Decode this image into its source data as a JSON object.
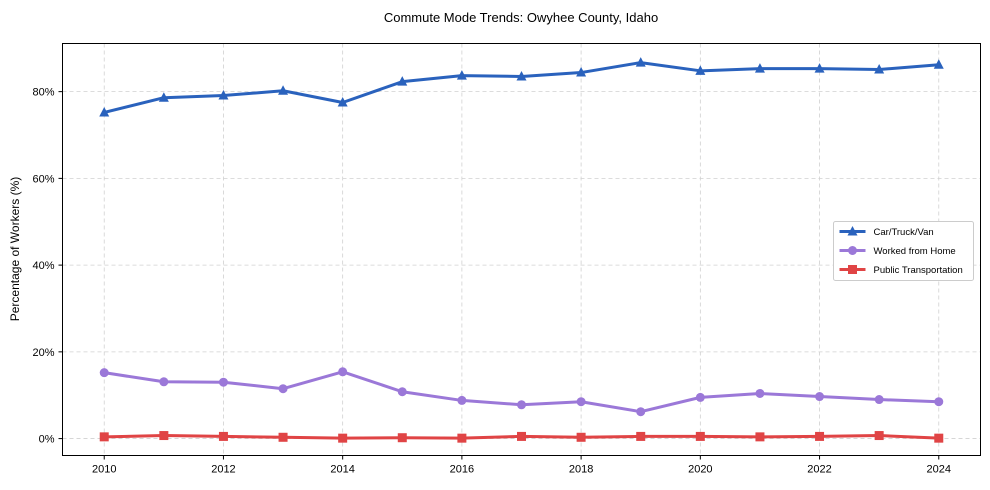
{
  "chart_data": {
    "type": "line",
    "title": "Commute Mode Trends: Owyhee County, Idaho",
    "xlabel": "",
    "ylabel": "Percentage of Workers (%)",
    "x": [
      2010,
      2011,
      2012,
      2013,
      2014,
      2015,
      2016,
      2017,
      2018,
      2019,
      2020,
      2021,
      2022,
      2023,
      2024
    ],
    "xticks": [
      "2010",
      "2012",
      "2014",
      "2016",
      "2018",
      "2020",
      "2022",
      "2024"
    ],
    "yticks": [
      "0%",
      "20%",
      "40%",
      "60%",
      "80%"
    ],
    "ylim": [
      -3.9,
      91.1
    ],
    "xlim": [
      2009.3,
      2024.7
    ],
    "grid": true,
    "legend_position": "center-right",
    "series": [
      {
        "name": "Car/Truck/Van",
        "color": "#2a62bd",
        "marker": "triangle",
        "values": [
          75.2,
          78.6,
          79.1,
          80.2,
          77.5,
          82.3,
          83.7,
          83.5,
          84.4,
          86.7,
          84.8,
          85.3,
          85.3,
          85.1,
          86.2
        ]
      },
      {
        "name": "Worked from Home",
        "color": "#9b78d8",
        "marker": "circle",
        "values": [
          15.2,
          13.1,
          13.0,
          11.5,
          15.4,
          10.8,
          8.8,
          7.8,
          8.5,
          6.2,
          9.5,
          10.4,
          9.7,
          9.0,
          8.5
        ]
      },
      {
        "name": "Public Transportation",
        "color": "#e04445",
        "marker": "square",
        "values": [
          0.4,
          0.7,
          0.5,
          0.3,
          0.1,
          0.2,
          0.1,
          0.5,
          0.3,
          0.5,
          0.5,
          0.4,
          0.5,
          0.7,
          0.1
        ]
      }
    ]
  }
}
